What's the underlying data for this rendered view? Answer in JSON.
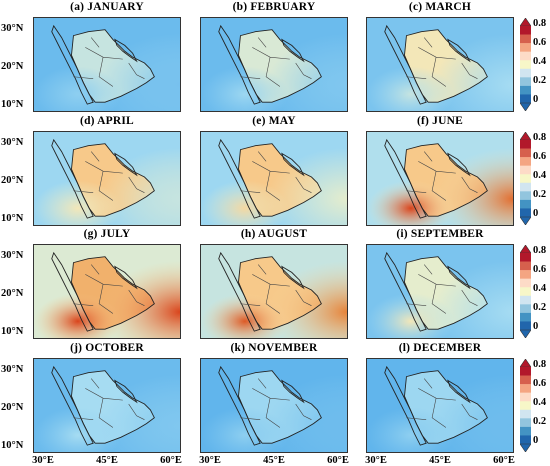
{
  "panels": [
    {
      "title": "(a) JANUARY",
      "level": 0.25,
      "east": 0.2,
      "sw": 0.25,
      "ksa": 0.35
    },
    {
      "title": "(b) FEBRUARY",
      "level": 0.25,
      "east": 0.22,
      "sw": 0.28,
      "ksa": 0.38
    },
    {
      "title": "(c) MARCH",
      "level": 0.3,
      "east": 0.3,
      "sw": 0.35,
      "ksa": 0.45
    },
    {
      "title": "(d) APRIL",
      "level": 0.4,
      "east": 0.35,
      "sw": 0.45,
      "ksa": 0.55
    },
    {
      "title": "(e) MAY",
      "level": 0.4,
      "east": 0.4,
      "sw": 0.5,
      "ksa": 0.55
    },
    {
      "title": "(f) JUNE",
      "level": 0.45,
      "east": 0.75,
      "sw": 0.85,
      "ksa": 0.55
    },
    {
      "title": "(g) JULY",
      "level": 0.55,
      "east": 0.85,
      "sw": 0.9,
      "ksa": 0.6
    },
    {
      "title": "(h) AUGUST",
      "level": 0.5,
      "east": 0.7,
      "sw": 0.8,
      "ksa": 0.55
    },
    {
      "title": "(i) SEPTEMBER",
      "level": 0.3,
      "east": 0.3,
      "sw": 0.45,
      "ksa": 0.4
    },
    {
      "title": "(j) OCTOBER",
      "level": 0.25,
      "east": 0.22,
      "sw": 0.3,
      "ksa": 0.3
    },
    {
      "title": "(k) NOVEMBER",
      "level": 0.22,
      "east": 0.18,
      "sw": 0.25,
      "ksa": 0.28
    },
    {
      "title": "(l) DECEMBER",
      "level": 0.22,
      "east": 0.18,
      "sw": 0.25,
      "ksa": 0.28
    }
  ],
  "lat_ticks": [
    "30°N",
    "20°N",
    "10°N"
  ],
  "lon_ticks": [
    "30°E",
    "45°E",
    "60°E"
  ],
  "colorbar": {
    "labels": [
      "0.8",
      "0.6",
      "0.4",
      "0.2",
      "0"
    ],
    "colors": [
      "#b2182b",
      "#d6604d",
      "#f4a582",
      "#fddbc7",
      "#f7f7c8",
      "#d1e5f0",
      "#92c5de",
      "#4393c3",
      "#2166ac"
    ],
    "range": [
      0,
      0.8
    ]
  }
}
